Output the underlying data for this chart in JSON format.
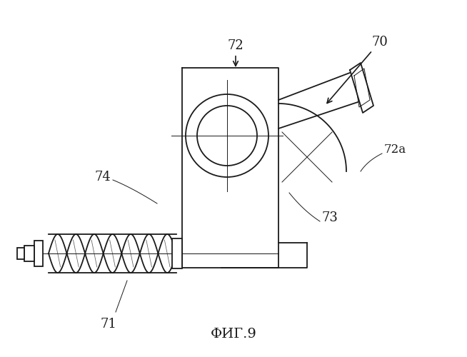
{
  "title": "ФИГ.9",
  "bg_color": "#ffffff",
  "line_color": "#1a1a1a",
  "lw": 1.3,
  "tlw": 0.7
}
